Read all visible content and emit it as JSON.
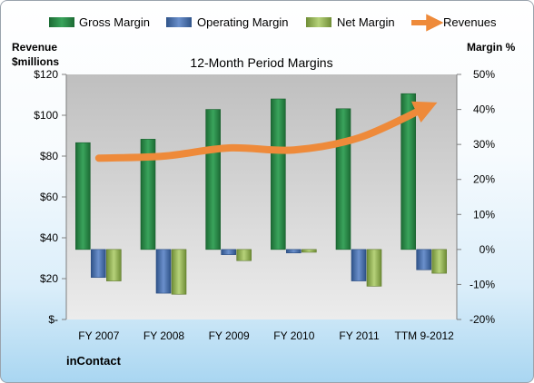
{
  "chart_data": {
    "type": "bar",
    "title": "12-Month Period Margins",
    "ylabel_left": [
      "Revenue",
      "$millions"
    ],
    "ylabel_right": "Margin %",
    "categories": [
      "FY 2007",
      "FY 2008",
      "FY 2009",
      "FY 2010",
      "FY 2011",
      "TTM 9-2012"
    ],
    "ylim_left": [
      0,
      120
    ],
    "yticks_left": [
      "$-",
      "$20",
      "$40",
      "$60",
      "$80",
      "$100",
      "$120"
    ],
    "ylim_right": [
      -20,
      50
    ],
    "yticks_right": [
      "-20%",
      "-10%",
      "0%",
      "10%",
      "20%",
      "30%",
      "40%",
      "50%"
    ],
    "grid": false,
    "legend_position": "top",
    "series": [
      {
        "name": "Gross Margin",
        "axis": "right",
        "kind": "bar",
        "color": "#2e8b4a",
        "values": [
          30.5,
          31.5,
          40.0,
          43.0,
          40.2,
          44.5
        ]
      },
      {
        "name": "Operating Margin",
        "axis": "right",
        "kind": "bar",
        "color": "#4a72b0",
        "values": [
          -8.0,
          -12.5,
          -1.5,
          -1.0,
          -9.0,
          -5.8
        ]
      },
      {
        "name": "Net Margin",
        "axis": "right",
        "kind": "bar",
        "color": "#98b855",
        "values": [
          -9.0,
          -12.8,
          -3.2,
          -0.8,
          -10.5,
          -6.8
        ]
      },
      {
        "name": "Revenues",
        "axis": "left",
        "kind": "line",
        "color": "#ee8a3a",
        "values": [
          79,
          80,
          84,
          83,
          89,
          103
        ]
      }
    ],
    "annotation": "inContact"
  }
}
